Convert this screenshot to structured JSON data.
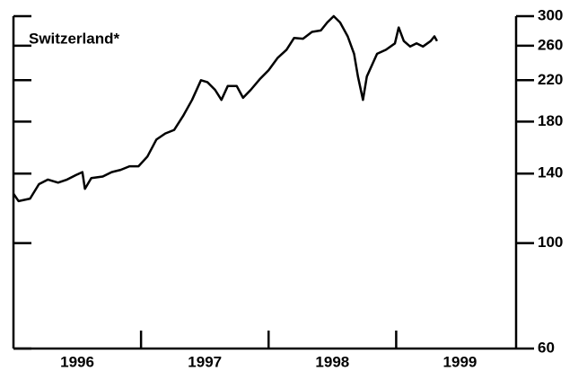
{
  "chart_data": {
    "type": "line",
    "title": "Switzerland*",
    "x": [
      1996.0,
      1996.04,
      1996.13,
      1996.2,
      1996.27,
      1996.35,
      1996.42,
      1996.49,
      1996.54,
      1996.56,
      1996.61,
      1996.7,
      1996.77,
      1996.84,
      1996.91,
      1996.98,
      1997.05,
      1997.12,
      1997.19,
      1997.26,
      1997.33,
      1997.4,
      1997.47,
      1997.52,
      1997.58,
      1997.63,
      1997.68,
      1997.75,
      1997.8,
      1997.86,
      1997.93,
      1998.0,
      1998.07,
      1998.14,
      1998.2,
      1998.27,
      1998.34,
      1998.41,
      1998.46,
      1998.51,
      1998.56,
      1998.62,
      1998.67,
      1998.7,
      1998.74,
      1998.77,
      1998.85,
      1998.92,
      1998.99,
      1999.02,
      1999.06,
      1999.11,
      1999.16,
      1999.21,
      1999.27,
      1999.3,
      1999.32
    ],
    "values": [
      127,
      122.5,
      124,
      133,
      136,
      134,
      136,
      139,
      141,
      130,
      137,
      138,
      141,
      142.5,
      145,
      145,
      152,
      165,
      170,
      173,
      185,
      200,
      220,
      218,
      210,
      200,
      214,
      214,
      202,
      210,
      221,
      231,
      245,
      255,
      270,
      269,
      278,
      280,
      291,
      300,
      291,
      272,
      250,
      224,
      200,
      224,
      250,
      255,
      263,
      284,
      266,
      259,
      263,
      259,
      266,
      272,
      266
    ],
    "color": "#000000",
    "xlim": [
      1996,
      1999.94
    ],
    "xticks": [
      {
        "value": 1996.5,
        "label": "1996"
      },
      {
        "value": 1997.5,
        "label": "1997"
      },
      {
        "value": 1998.5,
        "label": "1998"
      },
      {
        "value": 1999.5,
        "label": "1999"
      }
    ],
    "xminor_ticks": [
      1997,
      1998,
      1999
    ],
    "ylim": [
      60,
      300
    ],
    "yticks": [
      60,
      100,
      140,
      180,
      220,
      260,
      300
    ],
    "log_y": true,
    "y_axis_side": "right"
  }
}
